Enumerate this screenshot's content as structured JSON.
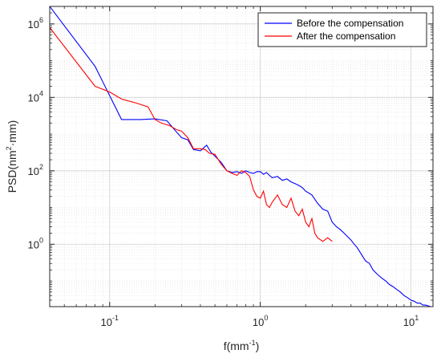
{
  "chart_data": {
    "type": "line",
    "xlabel_main": "f(mm",
    "xlabel_sup": "-1",
    "xlabel_end": ")",
    "ylabel_main": "PSD(nm",
    "ylabel_sup": "2",
    "ylabel_end": "·mm)",
    "xscale": "log",
    "yscale": "log",
    "xlim": [
      0.04,
      14
    ],
    "ylim": [
      0.02,
      3000000
    ],
    "x_major_ticks": [
      0.1,
      1,
      10
    ],
    "x_tick_labels": [
      {
        "base": "10",
        "exp": "-1"
      },
      {
        "base": "10",
        "exp": "0"
      },
      {
        "base": "10",
        "exp": "1"
      }
    ],
    "y_major_ticks": [
      1,
      100,
      10000,
      1000000
    ],
    "y_tick_labels": [
      {
        "base": "10",
        "exp": "0"
      },
      {
        "base": "10",
        "exp": "2"
      },
      {
        "base": "10",
        "exp": "4"
      },
      {
        "base": "10",
        "exp": "6"
      }
    ],
    "grid": true,
    "legend_position": "top-right",
    "series": [
      {
        "name": "Before the compensation",
        "color": "#0000ff",
        "x": [
          0.04,
          0.08,
          0.12,
          0.16,
          0.2,
          0.24,
          0.28,
          0.3,
          0.33,
          0.36,
          0.4,
          0.44,
          0.47,
          0.5,
          0.55,
          0.6,
          0.65,
          0.7,
          0.75,
          0.8,
          0.85,
          0.9,
          0.95,
          1.0,
          1.05,
          1.1,
          1.15,
          1.2,
          1.3,
          1.4,
          1.5,
          1.6,
          1.7,
          1.8,
          1.9,
          2.0,
          2.2,
          2.4,
          2.6,
          2.8,
          3.0,
          3.2,
          3.4,
          3.6,
          3.8,
          4.0,
          4.2,
          4.4,
          4.6,
          4.8,
          5.0,
          5.3,
          5.6,
          6.0,
          6.4,
          6.8,
          7.2,
          7.6,
          8.0,
          8.5,
          9.0,
          9.5,
          10.0,
          10.5,
          11.0,
          11.5,
          12.0,
          12.5,
          13.0,
          13.5,
          14.0
        ],
        "y": [
          3000000,
          70000,
          2500,
          2500,
          2600,
          2300,
          1100,
          800,
          700,
          380,
          350,
          500,
          320,
          250,
          170,
          100,
          90,
          95,
          85,
          100,
          90,
          85,
          95,
          95,
          80,
          90,
          75,
          65,
          70,
          55,
          60,
          50,
          45,
          40,
          35,
          28,
          22,
          13,
          9,
          8,
          4,
          3,
          2.5,
          2,
          1.6,
          1.3,
          1.0,
          0.8,
          0.6,
          0.45,
          0.35,
          0.3,
          0.2,
          0.15,
          0.12,
          0.1,
          0.08,
          0.07,
          0.06,
          0.05,
          0.04,
          0.035,
          0.03,
          0.028,
          0.025,
          0.025,
          0.022,
          0.022,
          0.021,
          0.02,
          0.02
        ]
      },
      {
        "name": "After the compensation",
        "color": "#ff0000",
        "x": [
          0.04,
          0.08,
          0.1,
          0.12,
          0.15,
          0.18,
          0.2,
          0.22,
          0.25,
          0.28,
          0.3,
          0.33,
          0.36,
          0.4,
          0.43,
          0.46,
          0.5,
          0.55,
          0.6,
          0.65,
          0.7,
          0.75,
          0.8,
          0.85,
          0.9,
          0.95,
          1.0,
          1.05,
          1.1,
          1.15,
          1.2,
          1.3,
          1.4,
          1.5,
          1.6,
          1.7,
          1.8,
          1.9,
          2.0,
          2.1,
          2.2,
          2.3,
          2.4,
          2.6,
          2.8,
          3.0
        ],
        "y": [
          800000,
          20000,
          14000,
          9000,
          7000,
          5500,
          2500,
          2000,
          1700,
          1300,
          1200,
          800,
          400,
          400,
          380,
          300,
          280,
          150,
          100,
          85,
          75,
          100,
          90,
          70,
          30,
          20,
          18,
          28,
          12,
          10,
          14,
          22,
          12,
          10,
          18,
          8,
          6,
          9,
          4,
          3,
          5,
          2,
          1.5,
          1.2,
          1.5,
          1.2
        ]
      }
    ]
  }
}
